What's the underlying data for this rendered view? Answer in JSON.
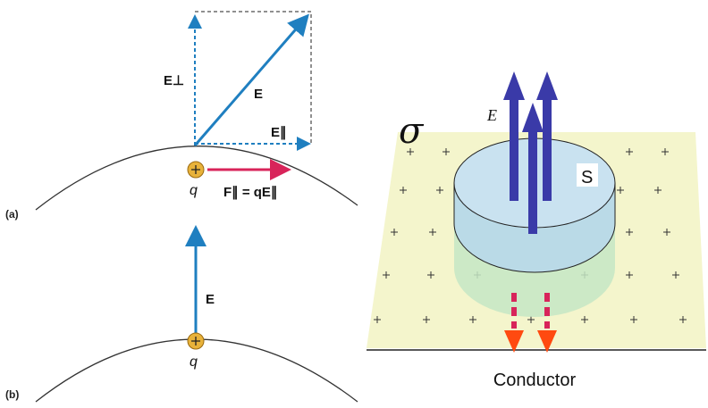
{
  "panel_a": {
    "label": "(a)",
    "e_perp": "E⊥",
    "e": "E",
    "e_par": "E∥",
    "charge": "q",
    "force": "F∥ = qE∥"
  },
  "panel_b": {
    "label": "(b)",
    "e": "E",
    "charge": "q"
  },
  "conductor_panel": {
    "sigma": "σ",
    "field": "E⃗",
    "surface": "S",
    "label": "Conductor"
  }
}
